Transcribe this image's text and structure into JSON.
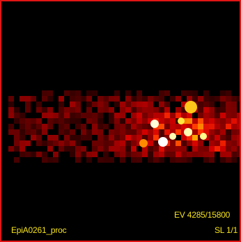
{
  "viewer": {
    "image_name": "EpiA0261_proc",
    "event_readout": "EV 4285/15800",
    "slice_readout": "SL 1/1",
    "colors": {
      "frame": "#e01515",
      "overlay_text": "#f5e21b",
      "background": "#000000"
    },
    "colormap": "hot"
  }
}
